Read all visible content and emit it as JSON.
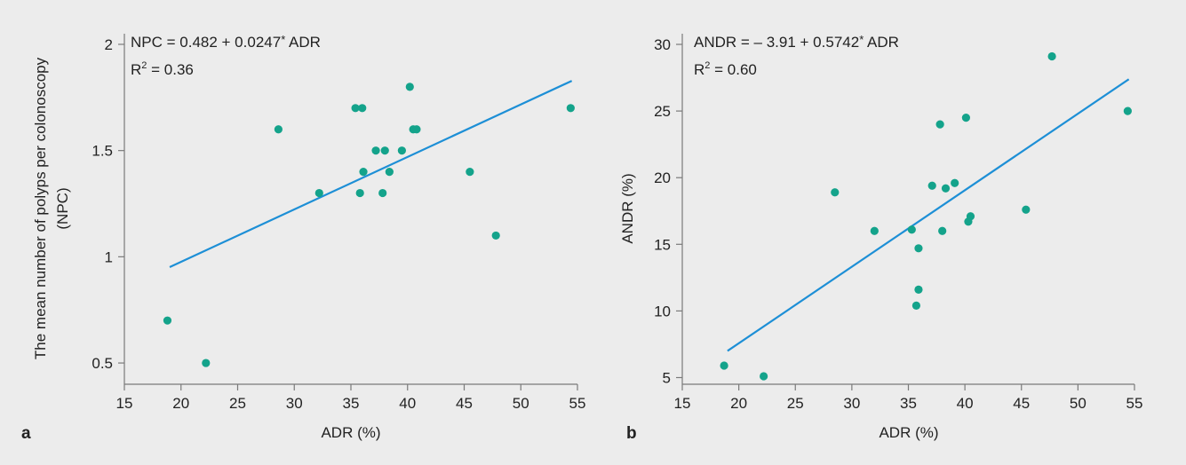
{
  "chart_data": [
    {
      "type": "scatter",
      "panel_label": "a",
      "xlabel": "ADR (%)",
      "ylabel_line1": "The mean number of polyps per colonoscopy",
      "ylabel_line2": "(NPC)",
      "xlim": [
        15,
        55
      ],
      "ylim": [
        0.4,
        2.05
      ],
      "xticks": [
        15,
        20,
        25,
        30,
        35,
        40,
        45,
        50,
        55
      ],
      "yticks": [
        0.5,
        1,
        1.5,
        2
      ],
      "ytick_labels": [
        "0.5",
        "1",
        "1.5",
        "2"
      ],
      "equation_text": "NPC = 0.482 + 0.0247",
      "equation_star": "*",
      "equation_tail": " ADR",
      "r2_prefix": "R",
      "r2_sup": "2",
      "r2_value": " = 0.36",
      "regression": {
        "intercept": 0.482,
        "slope": 0.0247,
        "x_range": [
          19,
          54.5
        ]
      },
      "points": [
        {
          "x": 18.8,
          "y": 0.7
        },
        {
          "x": 22.2,
          "y": 0.5
        },
        {
          "x": 28.6,
          "y": 1.6
        },
        {
          "x": 32.2,
          "y": 1.3
        },
        {
          "x": 35.4,
          "y": 1.7
        },
        {
          "x": 36.0,
          "y": 1.7
        },
        {
          "x": 35.8,
          "y": 1.3
        },
        {
          "x": 36.1,
          "y": 1.4
        },
        {
          "x": 37.2,
          "y": 1.5
        },
        {
          "x": 38.0,
          "y": 1.5
        },
        {
          "x": 37.8,
          "y": 1.3
        },
        {
          "x": 38.4,
          "y": 1.4
        },
        {
          "x": 39.5,
          "y": 1.5
        },
        {
          "x": 40.2,
          "y": 1.8
        },
        {
          "x": 40.5,
          "y": 1.6
        },
        {
          "x": 40.8,
          "y": 1.6
        },
        {
          "x": 45.5,
          "y": 1.4
        },
        {
          "x": 47.8,
          "y": 1.1
        },
        {
          "x": 54.4,
          "y": 1.7
        }
      ]
    },
    {
      "type": "scatter",
      "panel_label": "b",
      "xlabel": "ADR (%)",
      "ylabel": "ANDR (%)",
      "xlim": [
        15,
        55
      ],
      "ylim": [
        4.5,
        30.8
      ],
      "xticks": [
        15,
        20,
        25,
        30,
        35,
        40,
        45,
        50,
        55
      ],
      "yticks": [
        5,
        10,
        15,
        20,
        25,
        30
      ],
      "ytick_labels": [
        "5",
        "10",
        "15",
        "20",
        "25",
        "30"
      ],
      "equation_text": "ANDR = – 3.91 + 0.5742",
      "equation_star": "*",
      "equation_tail": " ADR",
      "r2_prefix": "R",
      "r2_sup": "2",
      "r2_value": " = 0.60",
      "regression": {
        "intercept": -3.91,
        "slope": 0.5742,
        "x_range": [
          19,
          54.5
        ]
      },
      "points": [
        {
          "x": 18.7,
          "y": 5.9
        },
        {
          "x": 22.2,
          "y": 5.1
        },
        {
          "x": 28.5,
          "y": 18.9
        },
        {
          "x": 32.0,
          "y": 16.0
        },
        {
          "x": 35.3,
          "y": 16.1
        },
        {
          "x": 35.7,
          "y": 10.4
        },
        {
          "x": 35.9,
          "y": 11.6
        },
        {
          "x": 35.9,
          "y": 14.7
        },
        {
          "x": 37.1,
          "y": 19.4
        },
        {
          "x": 37.8,
          "y": 24.0
        },
        {
          "x": 38.0,
          "y": 16.0
        },
        {
          "x": 38.3,
          "y": 19.2
        },
        {
          "x": 39.1,
          "y": 19.6
        },
        {
          "x": 40.1,
          "y": 24.5
        },
        {
          "x": 40.3,
          "y": 16.7
        },
        {
          "x": 40.5,
          "y": 17.1
        },
        {
          "x": 45.4,
          "y": 17.6
        },
        {
          "x": 47.7,
          "y": 29.1
        },
        {
          "x": 54.4,
          "y": 25.0
        }
      ]
    }
  ],
  "colors": {
    "point": "#14a38b",
    "line": "#1d8fd6",
    "axis": "#7a7a7a",
    "background": "#ececec"
  }
}
